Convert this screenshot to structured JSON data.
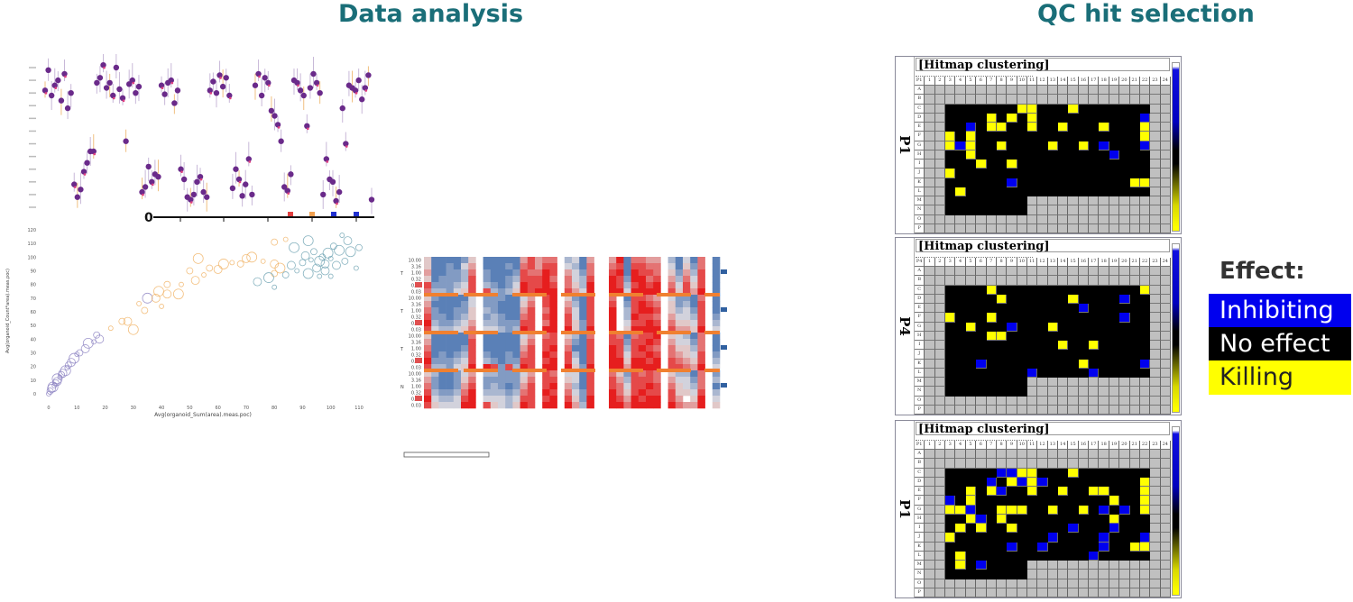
{
  "titles": {
    "left": "Data analysis",
    "right": "QC hit selection"
  },
  "legend": {
    "heading": "Effect:",
    "items": [
      {
        "label": "Inhibiting",
        "bg": "#0000ee",
        "fg": "#ffffff"
      },
      {
        "label": "No effect",
        "bg": "#000000",
        "fg": "#ffffff"
      },
      {
        "label": "Killing",
        "bg": "#ffff00",
        "fg": "#222222"
      }
    ]
  },
  "colors": {
    "title": "#1a6e78",
    "inhibiting": "#0000ee",
    "killing": "#ffff00",
    "no_effect": "#000000",
    "untested": "#c0c0c0"
  },
  "hitmaps": [
    {
      "plate": "P1",
      "title": "[Hitmap clustering]",
      "hits": [
        [
          "C",
          10,
          "Y"
        ],
        [
          "C",
          11,
          "Y"
        ],
        [
          "C",
          15,
          "Y"
        ],
        [
          "D",
          7,
          "Y"
        ],
        [
          "D",
          9,
          "Y"
        ],
        [
          "D",
          11,
          "Y"
        ],
        [
          "D",
          22,
          "B"
        ],
        [
          "E",
          5,
          "B"
        ],
        [
          "E",
          7,
          "Y"
        ],
        [
          "E",
          8,
          "Y"
        ],
        [
          "E",
          11,
          "Y"
        ],
        [
          "E",
          14,
          "Y"
        ],
        [
          "E",
          18,
          "Y"
        ],
        [
          "E",
          22,
          "Y"
        ],
        [
          "F",
          3,
          "Y"
        ],
        [
          "F",
          5,
          "Y"
        ],
        [
          "F",
          22,
          "Y"
        ],
        [
          "G",
          3,
          "Y"
        ],
        [
          "G",
          4,
          "B"
        ],
        [
          "G",
          5,
          "Y"
        ],
        [
          "G",
          8,
          "Y"
        ],
        [
          "G",
          13,
          "Y"
        ],
        [
          "G",
          16,
          "Y"
        ],
        [
          "G",
          18,
          "B"
        ],
        [
          "G",
          22,
          "B"
        ],
        [
          "H",
          5,
          "Y"
        ],
        [
          "H",
          19,
          "B"
        ],
        [
          "I",
          6,
          "Y"
        ],
        [
          "I",
          9,
          "Y"
        ],
        [
          "J",
          3,
          "Y"
        ],
        [
          "K",
          9,
          "B"
        ],
        [
          "K",
          21,
          "Y"
        ],
        [
          "K",
          22,
          "Y"
        ],
        [
          "L",
          4,
          "Y"
        ]
      ]
    },
    {
      "plate": "P4",
      "title": "[Hitmap clustering]",
      "hits": [
        [
          "C",
          7,
          "Y"
        ],
        [
          "C",
          22,
          "Y"
        ],
        [
          "D",
          8,
          "Y"
        ],
        [
          "D",
          15,
          "Y"
        ],
        [
          "D",
          20,
          "B"
        ],
        [
          "E",
          16,
          "B"
        ],
        [
          "F",
          3,
          "Y"
        ],
        [
          "F",
          7,
          "Y"
        ],
        [
          "F",
          20,
          "B"
        ],
        [
          "G",
          5,
          "Y"
        ],
        [
          "G",
          9,
          "B"
        ],
        [
          "G",
          13,
          "Y"
        ],
        [
          "H",
          7,
          "Y"
        ],
        [
          "H",
          8,
          "Y"
        ],
        [
          "I",
          14,
          "Y"
        ],
        [
          "I",
          17,
          "Y"
        ],
        [
          "K",
          6,
          "B"
        ],
        [
          "K",
          16,
          "Y"
        ],
        [
          "K",
          22,
          "B"
        ],
        [
          "L",
          11,
          "B"
        ],
        [
          "L",
          17,
          "B"
        ]
      ]
    },
    {
      "plate": "P1",
      "title": "[Hitmap clustering]",
      "hits": [
        [
          "C",
          8,
          "B"
        ],
        [
          "C",
          9,
          "B"
        ],
        [
          "C",
          10,
          "Y"
        ],
        [
          "C",
          11,
          "Y"
        ],
        [
          "C",
          15,
          "Y"
        ],
        [
          "D",
          7,
          "B"
        ],
        [
          "D",
          9,
          "Y"
        ],
        [
          "D",
          10,
          "B"
        ],
        [
          "D",
          11,
          "Y"
        ],
        [
          "D",
          12,
          "B"
        ],
        [
          "D",
          22,
          "Y"
        ],
        [
          "E",
          5,
          "Y"
        ],
        [
          "E",
          7,
          "Y"
        ],
        [
          "E",
          8,
          "B"
        ],
        [
          "E",
          11,
          "Y"
        ],
        [
          "E",
          14,
          "Y"
        ],
        [
          "E",
          17,
          "Y"
        ],
        [
          "E",
          18,
          "Y"
        ],
        [
          "E",
          22,
          "Y"
        ],
        [
          "F",
          3,
          "B"
        ],
        [
          "F",
          5,
          "Y"
        ],
        [
          "F",
          19,
          "Y"
        ],
        [
          "F",
          22,
          "Y"
        ],
        [
          "G",
          3,
          "Y"
        ],
        [
          "G",
          4,
          "Y"
        ],
        [
          "G",
          5,
          "B"
        ],
        [
          "G",
          8,
          "Y"
        ],
        [
          "G",
          9,
          "Y"
        ],
        [
          "G",
          10,
          "Y"
        ],
        [
          "G",
          13,
          "Y"
        ],
        [
          "G",
          16,
          "Y"
        ],
        [
          "G",
          18,
          "B"
        ],
        [
          "G",
          20,
          "B"
        ],
        [
          "G",
          22,
          "Y"
        ],
        [
          "H",
          5,
          "Y"
        ],
        [
          "H",
          6,
          "B"
        ],
        [
          "H",
          8,
          "Y"
        ],
        [
          "H",
          19,
          "Y"
        ],
        [
          "I",
          4,
          "Y"
        ],
        [
          "I",
          6,
          "Y"
        ],
        [
          "I",
          9,
          "Y"
        ],
        [
          "I",
          15,
          "B"
        ],
        [
          "I",
          19,
          "B"
        ],
        [
          "J",
          3,
          "Y"
        ],
        [
          "J",
          13,
          "B"
        ],
        [
          "J",
          18,
          "B"
        ],
        [
          "J",
          22,
          "B"
        ],
        [
          "K",
          9,
          "B"
        ],
        [
          "K",
          12,
          "B"
        ],
        [
          "K",
          18,
          "B"
        ],
        [
          "K",
          21,
          "Y"
        ],
        [
          "K",
          22,
          "Y"
        ],
        [
          "L",
          4,
          "Y"
        ],
        [
          "L",
          17,
          "B"
        ],
        [
          "M",
          4,
          "Y"
        ],
        [
          "M",
          6,
          "B"
        ]
      ]
    }
  ],
  "plate_rows": [
    "A",
    "B",
    "C",
    "D",
    "E",
    "F",
    "G",
    "H",
    "I",
    "J",
    "K",
    "L",
    "M",
    "N",
    "O",
    "P"
  ],
  "plate_cols": [
    1,
    2,
    3,
    4,
    5,
    6,
    7,
    8,
    9,
    10,
    11,
    12,
    13,
    14,
    15,
    16,
    17,
    18,
    19,
    20,
    21,
    22,
    23,
    24
  ],
  "chart_data": [
    {
      "type": "scatter",
      "title": "",
      "y": [
        92,
        108,
        88,
        96,
        100,
        84,
        105,
        78,
        90,
        18,
        8,
        14,
        28,
        35,
        44,
        44,
        98,
        102,
        112,
        94,
        98,
        88,
        110,
        93,
        86,
        52,
        97,
        100,
        90,
        95,
        12,
        16,
        32,
        20,
        26,
        24,
        96,
        89,
        98,
        100,
        82,
        92,
        30,
        22,
        8,
        6,
        10,
        20,
        24,
        12,
        8,
        92,
        99,
        90,
        104,
        95,
        102,
        88,
        15,
        30,
        22,
        9,
        18,
        38,
        10,
        96,
        105,
        88,
        102,
        98,
        76,
        72,
        65,
        52,
        16,
        13,
        26,
        100,
        98,
        92,
        88,
        64,
        94,
        105,
        98,
        90,
        10,
        38,
        22,
        20,
        5,
        12,
        78,
        50,
        96,
        94,
        92,
        100,
        85,
        94,
        104,
        6
      ],
      "x_axis_tick_label": "0",
      "ylim": [
        0,
        110
      ]
    },
    {
      "type": "scatter",
      "xlabel": "Avg(organoid_Sum(area).meas.poc)",
      "ylabel": "Avg(organoid_Count*area).meas.poc)",
      "xlim": [
        0,
        115
      ],
      "ylim": [
        0,
        120
      ],
      "xticks": [
        0,
        10,
        20,
        30,
        40,
        50,
        60,
        70,
        80,
        90,
        100,
        110
      ],
      "yticks": [
        0,
        10,
        20,
        30,
        40,
        50,
        60,
        70,
        80,
        90,
        100,
        110,
        120
      ],
      "groups": {
        "low": "#8a7fc0",
        "mid": "#f0b060",
        "high": "#6aa0b0"
      },
      "points": [
        [
          0,
          0,
          "low"
        ],
        [
          0.5,
          2,
          "low"
        ],
        [
          1,
          4,
          "low"
        ],
        [
          1.5,
          5,
          "low"
        ],
        [
          2,
          6,
          "low"
        ],
        [
          2.5,
          8,
          "low"
        ],
        [
          3,
          9,
          "low"
        ],
        [
          3,
          11,
          "low"
        ],
        [
          4,
          12,
          "low"
        ],
        [
          4.5,
          14,
          "low"
        ],
        [
          5,
          15,
          "low"
        ],
        [
          6,
          17,
          "low"
        ],
        [
          6.5,
          19,
          "low"
        ],
        [
          7,
          21,
          "low"
        ],
        [
          8,
          23,
          "low"
        ],
        [
          9,
          26,
          "low"
        ],
        [
          10,
          29,
          "low"
        ],
        [
          11,
          30,
          "low"
        ],
        [
          13,
          33,
          "low"
        ],
        [
          14,
          37,
          "low"
        ],
        [
          16,
          38,
          "low"
        ],
        [
          17,
          43,
          "low"
        ],
        [
          18,
          40,
          "low"
        ],
        [
          35,
          70,
          "low"
        ],
        [
          22,
          48,
          "mid"
        ],
        [
          26,
          53,
          "mid"
        ],
        [
          28,
          53,
          "mid"
        ],
        [
          30,
          47,
          "mid"
        ],
        [
          32,
          66,
          "mid"
        ],
        [
          34,
          61,
          "mid"
        ],
        [
          38,
          70,
          "mid"
        ],
        [
          39,
          75,
          "mid"
        ],
        [
          40,
          64,
          "mid"
        ],
        [
          42,
          80,
          "mid"
        ],
        [
          42,
          73,
          "mid"
        ],
        [
          46,
          73,
          "mid"
        ],
        [
          47,
          80,
          "mid"
        ],
        [
          50,
          90,
          "mid"
        ],
        [
          52,
          83,
          "mid"
        ],
        [
          53,
          99,
          "mid"
        ],
        [
          55,
          87,
          "mid"
        ],
        [
          57,
          92,
          "mid"
        ],
        [
          60,
          91,
          "mid"
        ],
        [
          62,
          95,
          "mid"
        ],
        [
          65,
          96,
          "mid"
        ],
        [
          68,
          95,
          "mid"
        ],
        [
          70,
          99,
          "mid"
        ],
        [
          72,
          100,
          "mid"
        ],
        [
          76,
          97,
          "mid"
        ],
        [
          80,
          111,
          "mid"
        ],
        [
          80,
          95,
          "mid"
        ],
        [
          82,
          92,
          "mid"
        ],
        [
          84,
          113,
          "mid"
        ],
        [
          80,
          88,
          "mid"
        ],
        [
          74,
          82,
          "high"
        ],
        [
          78,
          85,
          "high"
        ],
        [
          80,
          78,
          "high"
        ],
        [
          84,
          87,
          "high"
        ],
        [
          86,
          94,
          "high"
        ],
        [
          87,
          107,
          "high"
        ],
        [
          88,
          90,
          "high"
        ],
        [
          90,
          96,
          "high"
        ],
        [
          91,
          101,
          "high"
        ],
        [
          92,
          88,
          "high"
        ],
        [
          93,
          98,
          "high"
        ],
        [
          94,
          104,
          "high"
        ],
        [
          95,
          92,
          "high"
        ],
        [
          96,
          97,
          "high"
        ],
        [
          96,
          86,
          "high"
        ],
        [
          97,
          100,
          "high"
        ],
        [
          98,
          95,
          "high"
        ],
        [
          99,
          103,
          "high"
        ],
        [
          100,
          99,
          "high"
        ],
        [
          101,
          108,
          "high"
        ],
        [
          102,
          94,
          "high"
        ],
        [
          103,
          105,
          "high"
        ],
        [
          104,
          116,
          "high"
        ],
        [
          105,
          97,
          "high"
        ],
        [
          106,
          112,
          "high"
        ],
        [
          107,
          104,
          "high"
        ],
        [
          109,
          92,
          "high"
        ],
        [
          110,
          107,
          "high"
        ],
        [
          98,
          90,
          "high"
        ],
        [
          92,
          112,
          "high"
        ],
        [
          100,
          86,
          "high"
        ]
      ]
    },
    {
      "type": "heatmap",
      "row_labels": [
        "10.00",
        "3.16",
        "1.00",
        "0.32",
        "0.10",
        "0.03",
        "10.00",
        "3.16",
        "1.00",
        "0.32",
        "0.10",
        "0.03",
        "10.00",
        "3.16",
        "1.00",
        "0.32",
        "0.10",
        "0.03",
        "10.00",
        "3.16",
        "1.00",
        "0.32",
        "0.10",
        "0.03"
      ],
      "group_labels": [
        "T",
        "T",
        "T",
        "N"
      ],
      "rows": [
        "5111125.1111168677.3416..6917766.31417.1",
        "5112146.1112178688.4317..7818877.41527.1",
        "6112237.2111287798.6427..8919887.52638.1",
        "5122238.2112388897.7438..9829978.63748.1",
        "8222348.3212498898.7539..9838989.74858.1",
        "7332458.8323598999.8649..9949999.85869.1",
        "5211114.2221146.89.5218..7.18876.42217.1",
        "6111124.2211157.89.6318..8.28987.52318.1",
        "7211225.3211168.79.7418..9.38998.53428.1",
        "8221235.2321178.89.8418..9.39887.64438.2",
        "9322346.3322288.79.8528..9.48898.75548.3",
        "8433457.4432398.99.9529..9.59999.86659.4",
        "5111117.1111146.78.5317..8717889.54317.1",
        "6111118.1111157.88.6218..8828898.64427.1",
        "7111128.1111168.89.7118..9838987.75537.1",
        "8121238.2112178.98.8318..9848898.76548.2",
        "9222348.3212288.89.8418..9959989.87658.3",
        "8332459.9828398.99.9529..9969999.88769.4",
        "5311246.3322246.87.4418..7528787.53317.2",
        "6211257.2222257.88.5418..8638887.64427.3",
        "7211268.2321268.89.6318..8748898.75437.1",
        "8322379.3332378.98.7428..9758988.85548.3",
        "9433489.4443488.89.8529..9869899.86.59.4",
        "8544499.8543598.99.9639..9979999.97669.5"
      ],
      "side_marker_rows": [
        2,
        8,
        14,
        20
      ],
      "left_marker_rows": [
        4,
        10,
        16,
        22
      ]
    }
  ]
}
